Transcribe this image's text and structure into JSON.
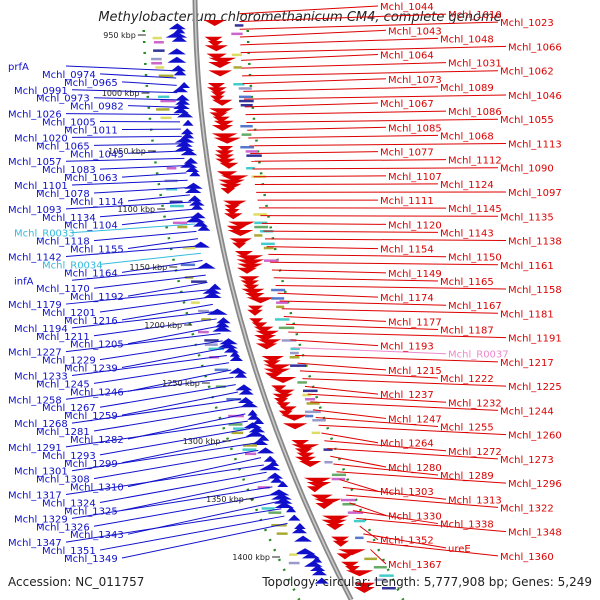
{
  "title": "Methylobacterium chloromethanicum CM4, complete genome",
  "footer": {
    "accession": "Accession: NC_011757",
    "summary": "Topology: circular; Length: 5,777,908 bp; Genes: 5,249"
  },
  "colors": {
    "left_gene": "#1010cc",
    "right_gene": "#dd0000",
    "rna_left": "#33bbdd",
    "rna_right": "#ee88cc",
    "backbone": "#888888",
    "tick_dot": "#228822"
  },
  "ticks": [
    {
      "label": "950 kbp"
    },
    {
      "label": "1000 kbp"
    },
    {
      "label": "1050 kbp"
    },
    {
      "label": "1100 kbp"
    },
    {
      "label": "1150 kbp"
    },
    {
      "label": "1200 kbp"
    },
    {
      "label": "1250 kbp"
    },
    {
      "label": "1300 kbp"
    },
    {
      "label": "1350 kbp"
    },
    {
      "label": "1400 kbp"
    }
  ],
  "left_labels": [
    {
      "text": "prfA"
    },
    {
      "text": "Mchl_0974"
    },
    {
      "text": "Mchl_0965"
    },
    {
      "text": "Mchl_0991"
    },
    {
      "text": "Mchl_0973"
    },
    {
      "text": "Mchl_0982"
    },
    {
      "text": "Mchl_1026"
    },
    {
      "text": "Mchl_1005"
    },
    {
      "text": "Mchl_1011"
    },
    {
      "text": "Mchl_1020"
    },
    {
      "text": "Mchl_1065"
    },
    {
      "text": "Mchl_1045"
    },
    {
      "text": "Mchl_1057"
    },
    {
      "text": "Mchl_1083"
    },
    {
      "text": "Mchl_1063"
    },
    {
      "text": "Mchl_1101"
    },
    {
      "text": "Mchl_1078"
    },
    {
      "text": "Mchl_1114"
    },
    {
      "text": "Mchl_1093"
    },
    {
      "text": "Mchl_1134"
    },
    {
      "text": "Mchl_1104"
    },
    {
      "text": "Mchl_R0033",
      "rna": true
    },
    {
      "text": "Mchl_1118"
    },
    {
      "text": "Mchl_1155"
    },
    {
      "text": "Mchl_1142"
    },
    {
      "text": "Mchl_R0034",
      "rna": true
    },
    {
      "text": "Mchl_1164"
    },
    {
      "text": "infA"
    },
    {
      "text": "Mchl_1170"
    },
    {
      "text": "Mchl_1192"
    },
    {
      "text": "Mchl_1179"
    },
    {
      "text": "Mchl_1201"
    },
    {
      "text": "Mchl_1216"
    },
    {
      "text": "Mchl_1194"
    },
    {
      "text": "Mchl_1211"
    },
    {
      "text": "Mchl_1205"
    },
    {
      "text": "Mchl_1227"
    },
    {
      "text": "Mchl_1229"
    },
    {
      "text": "Mchl_1239"
    },
    {
      "text": "Mchl_1233"
    },
    {
      "text": "Mchl_1245"
    },
    {
      "text": "Mchl_1246"
    },
    {
      "text": "Mchl_1258"
    },
    {
      "text": "Mchl_1267"
    },
    {
      "text": "Mchl_1259"
    },
    {
      "text": "Mchl_1268"
    },
    {
      "text": "Mchl_1281"
    },
    {
      "text": "Mchl_1282"
    },
    {
      "text": "Mchl_1291"
    },
    {
      "text": "Mchl_1293"
    },
    {
      "text": "Mchl_1299"
    },
    {
      "text": "Mchl_1301"
    },
    {
      "text": "Mchl_1308"
    },
    {
      "text": "Mchl_1310"
    },
    {
      "text": "Mchl_1317"
    },
    {
      "text": "Mchl_1324"
    },
    {
      "text": "Mchl_1325"
    },
    {
      "text": "Mchl_1329"
    },
    {
      "text": "Mchl_1326"
    },
    {
      "text": "Mchl_1343"
    },
    {
      "text": "Mchl_1347"
    },
    {
      "text": "Mchl_1351"
    },
    {
      "text": "Mchl_1349"
    }
  ],
  "right_labels": [
    {
      "text": "Mchl_1044"
    },
    {
      "text": "Mchl_1010"
    },
    {
      "text": "Mchl_1023"
    },
    {
      "text": "Mchl_1043"
    },
    {
      "text": "Mchl_1048"
    },
    {
      "text": "Mchl_1066"
    },
    {
      "text": "Mchl_1064"
    },
    {
      "text": "Mchl_1031"
    },
    {
      "text": "Mchl_1062"
    },
    {
      "text": "Mchl_1073"
    },
    {
      "text": "Mchl_1089"
    },
    {
      "text": "Mchl_1046"
    },
    {
      "text": "Mchl_1067"
    },
    {
      "text": "Mchl_1086"
    },
    {
      "text": "Mchl_1055"
    },
    {
      "text": "Mchl_1085"
    },
    {
      "text": "Mchl_1068"
    },
    {
      "text": "Mchl_1113"
    },
    {
      "text": "Mchl_1077"
    },
    {
      "text": "Mchl_1112"
    },
    {
      "text": "Mchl_1090"
    },
    {
      "text": "Mchl_1107"
    },
    {
      "text": "Mchl_1124"
    },
    {
      "text": "Mchl_1097"
    },
    {
      "text": "Mchl_1111"
    },
    {
      "text": "Mchl_1145"
    },
    {
      "text": "Mchl_1135"
    },
    {
      "text": "Mchl_1120"
    },
    {
      "text": "Mchl_1143"
    },
    {
      "text": "Mchl_1138"
    },
    {
      "text": "Mchl_1154"
    },
    {
      "text": "Mchl_1150"
    },
    {
      "text": "Mchl_1161"
    },
    {
      "text": "Mchl_1149"
    },
    {
      "text": "Mchl_1165"
    },
    {
      "text": "Mchl_1158"
    },
    {
      "text": "Mchl_1174"
    },
    {
      "text": "Mchl_1167"
    },
    {
      "text": "Mchl_1181"
    },
    {
      "text": "Mchl_1177"
    },
    {
      "text": "Mchl_1187"
    },
    {
      "text": "Mchl_1191"
    },
    {
      "text": "Mchl_1193"
    },
    {
      "text": "Mchl_R0037",
      "rna": true
    },
    {
      "text": "Mchl_1217"
    },
    {
      "text": "Mchl_1215"
    },
    {
      "text": "Mchl_1222"
    },
    {
      "text": "Mchl_1225"
    },
    {
      "text": "Mchl_1237"
    },
    {
      "text": "Mchl_1232"
    },
    {
      "text": "Mchl_1244"
    },
    {
      "text": "Mchl_1247"
    },
    {
      "text": "Mchl_1255"
    },
    {
      "text": "Mchl_1260"
    },
    {
      "text": "Mchl_1264"
    },
    {
      "text": "Mchl_1272"
    },
    {
      "text": "Mchl_1273"
    },
    {
      "text": "Mchl_1280"
    },
    {
      "text": "Mchl_1289"
    },
    {
      "text": "Mchl_1296"
    },
    {
      "text": "Mchl_1303"
    },
    {
      "text": "Mchl_1313"
    },
    {
      "text": "Mchl_1322"
    },
    {
      "text": "Mchl_1330"
    },
    {
      "text": "Mchl_1338"
    },
    {
      "text": "Mchl_1348"
    },
    {
      "text": "Mchl_1352"
    },
    {
      "text": "ureE"
    },
    {
      "text": "Mchl_1360"
    },
    {
      "text": "Mchl_1367"
    }
  ]
}
